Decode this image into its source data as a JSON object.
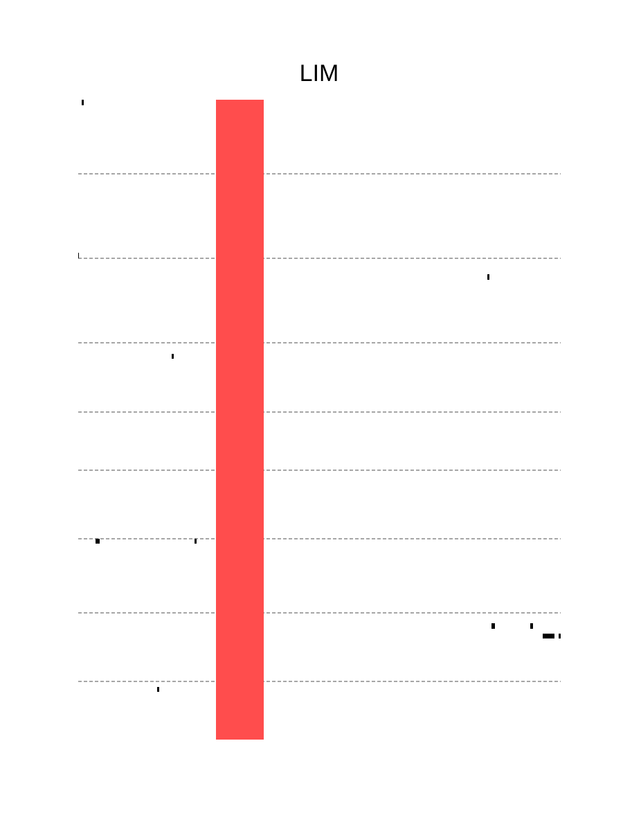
{
  "chart_data": {
    "type": "bar",
    "title": "LIM",
    "xlabel": "",
    "ylabel": "",
    "bar_color": "#ff4d4d",
    "gridline_color": "#888888",
    "grid": true,
    "gridline_style": "dashed",
    "axes_visible": false,
    "categories": [
      ""
    ],
    "values": [
      1.0
    ]
  }
}
